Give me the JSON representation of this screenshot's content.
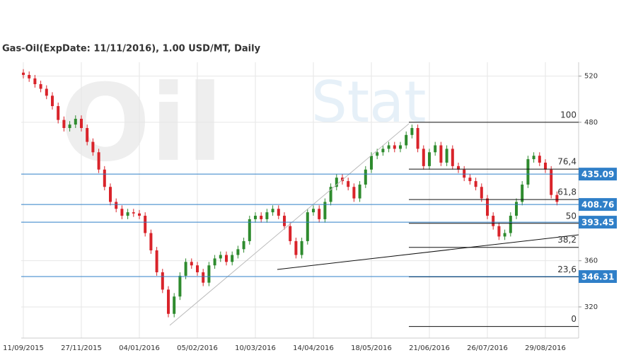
{
  "chart_data": {
    "type": "candlestick",
    "title": "Gas-Oil(ExpDate: 11/11/2016), 1.00 USD/MT, Daily",
    "watermark": [
      "Oil",
      "Stat"
    ],
    "categories": [
      "11/09/2015",
      null,
      null,
      null,
      null,
      null,
      null,
      null,
      null,
      null,
      "27/11/2015",
      null,
      null,
      null,
      null,
      null,
      null,
      null,
      null,
      null,
      "04/01/2016",
      null,
      null,
      null,
      null,
      null,
      null,
      null,
      null,
      null,
      "05/02/2016",
      null,
      null,
      null,
      null,
      null,
      null,
      null,
      null,
      null,
      "10/03/2016",
      null,
      null,
      null,
      null,
      null,
      null,
      null,
      null,
      null,
      "14/04/2016",
      null,
      null,
      null,
      null,
      null,
      null,
      null,
      null,
      null,
      "18/05/2016",
      null,
      null,
      null,
      null,
      null,
      null,
      null,
      null,
      null,
      "21/06/2016",
      null,
      null,
      null,
      null,
      null,
      null,
      null,
      null,
      null,
      "26/07/2016",
      null,
      null,
      null,
      null,
      null,
      null,
      null,
      null,
      null,
      "29/08/2016",
      null,
      null
    ],
    "open": [
      523,
      521,
      518,
      513,
      509,
      503,
      494,
      482,
      475,
      478,
      483,
      475,
      463,
      454,
      439,
      424,
      411,
      405,
      399,
      402,
      401,
      399,
      384,
      369,
      350,
      335,
      314,
      329,
      347,
      359,
      356,
      350,
      341,
      356,
      362,
      365,
      359,
      365,
      370,
      377,
      396,
      399,
      396,
      402,
      405,
      399,
      390,
      377,
      365,
      377,
      402,
      405,
      396,
      411,
      424,
      432,
      429,
      424,
      414,
      426,
      439,
      451,
      454,
      457,
      460,
      457,
      460,
      469,
      475,
      457,
      442,
      454,
      460,
      445,
      457,
      442,
      439,
      432,
      429,
      424,
      414,
      399,
      390,
      381,
      384,
      399,
      411,
      426,
      448,
      451,
      445,
      439,
      417
    ],
    "high": [
      526,
      524,
      521,
      516,
      512,
      506,
      497,
      485,
      481,
      486,
      486,
      478,
      466,
      457,
      442,
      427,
      414,
      408,
      405,
      405,
      404,
      402,
      387,
      372,
      353,
      338,
      332,
      350,
      362,
      362,
      359,
      353,
      359,
      365,
      368,
      368,
      368,
      373,
      380,
      399,
      402,
      402,
      405,
      408,
      408,
      402,
      393,
      380,
      380,
      405,
      408,
      408,
      414,
      427,
      435,
      435,
      432,
      427,
      429,
      442,
      454,
      457,
      460,
      463,
      463,
      463,
      472,
      478,
      478,
      460,
      457,
      463,
      463,
      460,
      460,
      445,
      442,
      435,
      432,
      427,
      417,
      402,
      393,
      387,
      402,
      414,
      429,
      451,
      454,
      454,
      448,
      442,
      420
    ],
    "low": [
      518,
      515,
      510,
      506,
      500,
      491,
      479,
      472,
      472,
      475,
      472,
      460,
      451,
      436,
      421,
      408,
      402,
      396,
      396,
      398,
      396,
      381,
      366,
      347,
      332,
      311,
      311,
      326,
      344,
      353,
      347,
      338,
      338,
      353,
      359,
      356,
      356,
      362,
      367,
      374,
      393,
      393,
      393,
      399,
      396,
      387,
      374,
      362,
      362,
      374,
      399,
      393,
      393,
      408,
      421,
      426,
      421,
      411,
      411,
      423,
      436,
      448,
      451,
      454,
      454,
      454,
      457,
      466,
      454,
      439,
      439,
      451,
      442,
      442,
      439,
      436,
      429,
      426,
      421,
      411,
      396,
      387,
      378,
      378,
      381,
      396,
      408,
      423,
      445,
      442,
      436,
      414,
      408
    ],
    "close": [
      521,
      518,
      513,
      509,
      503,
      494,
      482,
      475,
      478,
      483,
      475,
      463,
      454,
      439,
      424,
      411,
      405,
      399,
      402,
      401,
      399,
      384,
      369,
      350,
      335,
      314,
      329,
      347,
      359,
      356,
      350,
      341,
      356,
      362,
      365,
      359,
      365,
      370,
      377,
      396,
      399,
      396,
      402,
      405,
      399,
      390,
      377,
      365,
      377,
      402,
      405,
      396,
      411,
      424,
      432,
      429,
      424,
      414,
      426,
      439,
      451,
      454,
      457,
      460,
      457,
      460,
      469,
      475,
      457,
      442,
      454,
      460,
      445,
      457,
      442,
      439,
      432,
      429,
      424,
      414,
      399,
      390,
      381,
      384,
      399,
      411,
      426,
      448,
      451,
      445,
      439,
      417,
      411
    ],
    "up_color": "#2e8b2e",
    "down_color": "#d9232a",
    "ylim": [
      293,
      532
    ],
    "yticks": [
      320,
      360,
      480,
      520
    ],
    "grid": true,
    "levels": [
      {
        "value": 435.09
      },
      {
        "value": 408.76
      },
      {
        "value": 393.45
      },
      {
        "value": 346.31
      }
    ],
    "level_color": "#2f7fc8",
    "fib_levels": [
      {
        "label": "100",
        "value": 480
      },
      {
        "label": "76,4",
        "value": 439.4
      },
      {
        "label": "61,8",
        "value": 413
      },
      {
        "label": "50",
        "value": 392.4
      },
      {
        "label": "38,2",
        "value": 371.6
      },
      {
        "label": "23,6",
        "value": 346
      },
      {
        "label": "0",
        "value": 303
      }
    ]
  }
}
